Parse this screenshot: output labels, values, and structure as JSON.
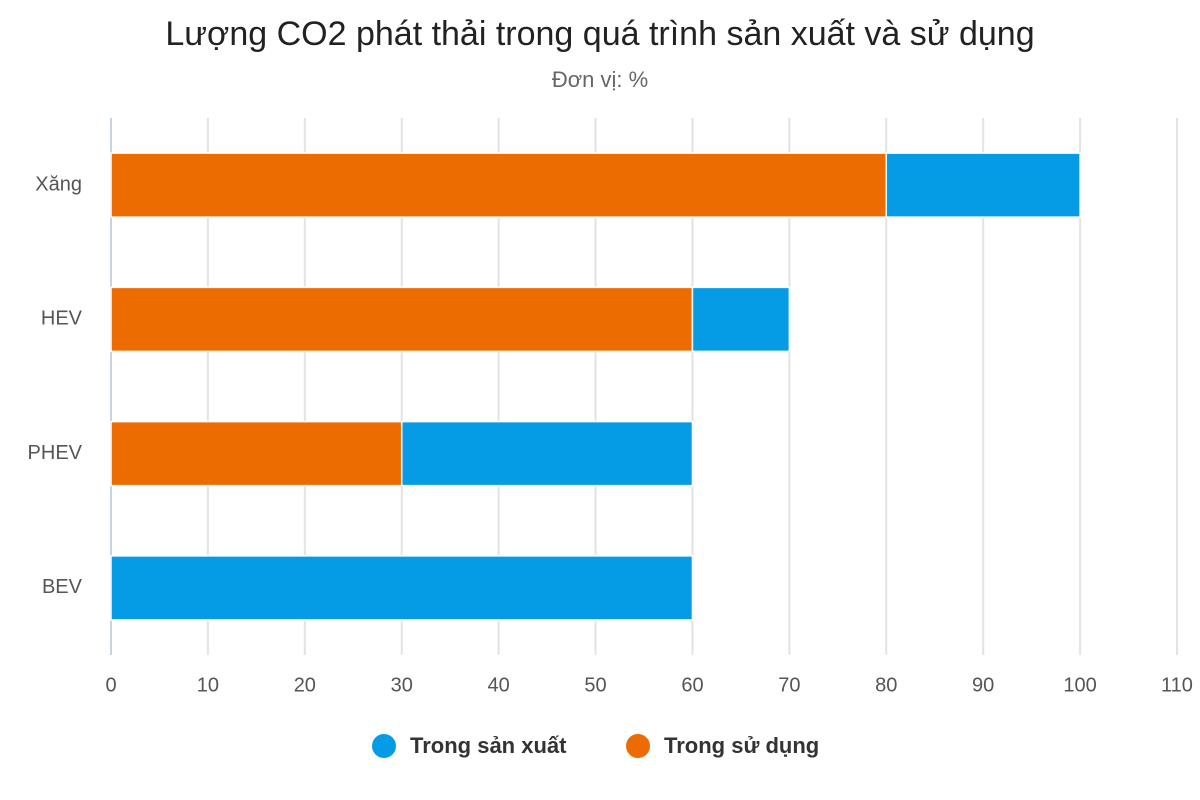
{
  "chart_data": {
    "type": "stacked_bar_horizontal",
    "title": "Lượng CO2 phát thải trong quá trình sản xuất và sử dụng",
    "subtitle": "Đơn vị: %",
    "categories": [
      "Xăng",
      "HEV",
      "PHEV",
      "BEV"
    ],
    "series": [
      {
        "name": "Trong sản xuất",
        "color": "#069be5",
        "values": [
          20,
          10,
          30,
          60
        ]
      },
      {
        "name": "Trong sử dụng",
        "color": "#ed6c02",
        "values": [
          80,
          60,
          30,
          0
        ]
      }
    ],
    "xlim": [
      0,
      110
    ],
    "xticks": [
      0,
      10,
      20,
      30,
      40,
      50,
      60,
      70,
      80,
      90,
      100,
      110
    ],
    "grid": true,
    "legend": "bottom"
  }
}
